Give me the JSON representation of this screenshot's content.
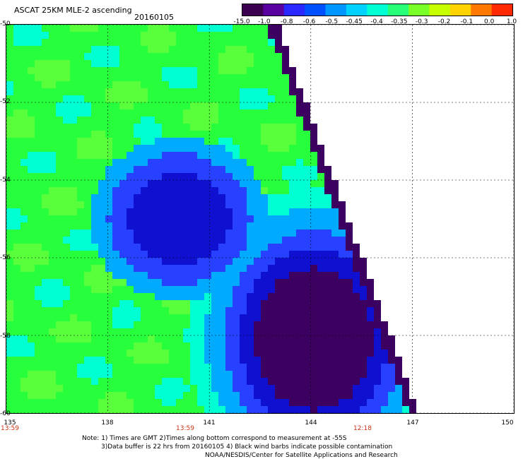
{
  "header": {
    "title": "ASCAT 25KM MLE-2 ascending",
    "date": "20160105"
  },
  "colorbar": {
    "labels": [
      "-15.0",
      "-1.0",
      "-0.8",
      "-0.6",
      "-0.5",
      "-0.45",
      "-0.4",
      "-0.35",
      "-0.3",
      "-0.2",
      "-0.1",
      "0.0",
      "1.0"
    ],
    "colors": [
      "#3c0050",
      "#5a00a0",
      "#2828ff",
      "#0050ff",
      "#0096ff",
      "#00d2ff",
      "#00ffd2",
      "#28ff78",
      "#78ff28",
      "#c8ff00",
      "#ffd200",
      "#ff7800",
      "#ff2800"
    ]
  },
  "axes": {
    "lat_labels": [
      "-50",
      "-52",
      "-54",
      "-56",
      "-58",
      "-60"
    ],
    "lon_labels": [
      "135",
      "138",
      "141",
      "144",
      "147",
      "150"
    ],
    "time_labels": [
      "13:59",
      "13:59",
      "12:18"
    ]
  },
  "notes": {
    "line1": "Note: 1) Times are GMT 2)Times along bottom correspond to measurement at -55S",
    "line2": "3)Data buffer is 22 hrs from 20160105 4) Black wind barbs indicate possible contamination",
    "line3": "NOAA/NESDIS/Center for Satellite Applications and Research"
  },
  "map_colors": {
    "green": "#28ff3c",
    "lightgreen": "#5aff3c",
    "cyan": "#00ffd2",
    "sky": "#00aaff",
    "blue": "#2840ff",
    "darkblue": "#1010d0",
    "purple": "#3c0060"
  }
}
